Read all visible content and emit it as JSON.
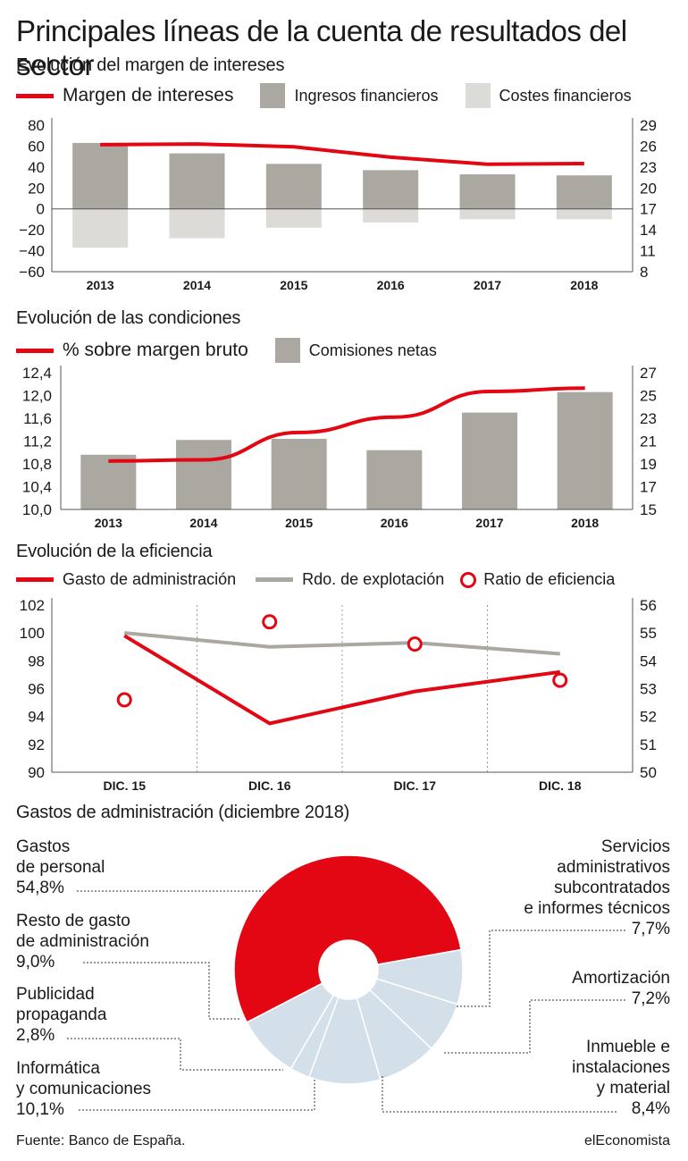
{
  "title": "Principales líneas de la cuenta de resultados del sector",
  "colors": {
    "red": "#e30613",
    "dark_gray": "#aba7a1",
    "light_gray": "#dcdbd7",
    "light_blue": "#d3e0ea"
  },
  "chart1": {
    "subtitle": "Evolución del margen de intereses",
    "legend": {
      "line": "Margen de intereses",
      "bar1": "Ingresos financieros",
      "bar2": "Costes financieros"
    }
  },
  "chart2": {
    "subtitle": "Evolución de las condiciones",
    "legend": {
      "line": "% sobre margen bruto",
      "bar": "Comisiones netas"
    }
  },
  "chart3": {
    "subtitle": "Evolución de la eficiencia",
    "legend": {
      "line_red": "Gasto de administración",
      "line_gray": "Rdo. de explotación",
      "dots": "Ratio de eficiencia"
    }
  },
  "chart4": {
    "subtitle": "Gastos de administración (diciembre 2018)",
    "labels": {
      "personal_1": "Gastos",
      "personal_2": "de personal",
      "personal_v": "54,8%",
      "resto_1": "Resto de gasto",
      "resto_2": "de administración",
      "resto_v": "9,0%",
      "publi_1": "Publicidad",
      "publi_2": "propaganda",
      "publi_v": "2,8%",
      "info_1": "Informática",
      "info_2": "y comunicaciones",
      "info_v": "10,1%",
      "serv_1": "Servicios",
      "serv_2": "administrativos",
      "serv_3": "subcontratados",
      "serv_4": "e informes técnicos",
      "serv_v": "7,7%",
      "amort_1": "Amortización",
      "amort_v": "7,2%",
      "inm_1": "Inmueble e",
      "inm_2": "instalaciones",
      "inm_3": "y material",
      "inm_v": "8,4%"
    }
  },
  "footer": {
    "source": "Fuente: Banco de España.",
    "brand": "elEconomista"
  },
  "chart_data": [
    {
      "type": "bar",
      "title": "Evolución del margen de intereses",
      "categories": [
        "2013",
        "2014",
        "2015",
        "2016",
        "2017",
        "2018"
      ],
      "series": [
        {
          "name": "Ingresos financieros",
          "type": "bar",
          "axis": "left",
          "values": [
            63,
            53,
            43,
            37,
            33,
            32
          ]
        },
        {
          "name": "Costes financieros",
          "type": "bar",
          "axis": "left",
          "values": [
            -37,
            -28,
            -18,
            -13,
            -10,
            -10
          ]
        },
        {
          "name": "Margen de intereses",
          "type": "line",
          "axis": "right",
          "values": [
            26.2,
            26.3,
            25.9,
            24.4,
            23.4,
            23.5
          ]
        }
      ],
      "ylim_left": [
        -60,
        80
      ],
      "yticks_left": [
        "80",
        "60",
        "40",
        "20",
        "0",
        "−20",
        "−40",
        "−60"
      ],
      "ylim_right": [
        8,
        29
      ],
      "yticks_right": [
        "29",
        "26",
        "23",
        "20",
        "17",
        "14",
        "11",
        "8"
      ]
    },
    {
      "type": "bar",
      "title": "Evolución de las condiciones",
      "categories": [
        "2013",
        "2014",
        "2015",
        "2016",
        "2017",
        "2018"
      ],
      "series": [
        {
          "name": "Comisiones netas",
          "type": "bar",
          "axis": "right",
          "values": [
            19.8,
            21.1,
            21.2,
            20.2,
            23.5,
            25.3
          ]
        },
        {
          "name": "% sobre margen bruto",
          "type": "line",
          "axis": "left",
          "values": [
            10.85,
            10.87,
            11.35,
            11.62,
            12.07,
            12.13
          ]
        }
      ],
      "ylim_left": [
        10.0,
        12.4
      ],
      "yticks_left": [
        "12,4",
        "12,0",
        "11,6",
        "11,2",
        "10,8",
        "10,4",
        "10,0"
      ],
      "ylim_right": [
        15,
        27
      ],
      "yticks_right": [
        "27",
        "25",
        "23",
        "21",
        "19",
        "17",
        "15"
      ]
    },
    {
      "type": "line",
      "title": "Evolución de la eficiencia",
      "categories": [
        "DIC. 15",
        "DIC. 16",
        "DIC. 17",
        "DIC. 18"
      ],
      "series": [
        {
          "name": "Gasto de administración",
          "type": "line",
          "axis": "left",
          "values": [
            99.8,
            93.5,
            95.8,
            97.2
          ]
        },
        {
          "name": "Rdo. de explotación",
          "type": "line",
          "axis": "left",
          "values": [
            100.0,
            99.0,
            99.3,
            98.5
          ]
        },
        {
          "name": "Ratio de eficiencia",
          "type": "scatter",
          "axis": "right",
          "values": [
            52.6,
            55.4,
            54.6,
            53.3
          ]
        }
      ],
      "ylim_left": [
        90,
        102
      ],
      "yticks_left": [
        "102",
        "100",
        "98",
        "96",
        "94",
        "92",
        "90"
      ],
      "ylim_right": [
        50,
        56
      ],
      "yticks_right": [
        "56",
        "55",
        "54",
        "53",
        "52",
        "51",
        "50"
      ]
    },
    {
      "type": "pie",
      "title": "Gastos de administración (diciembre 2018)",
      "labels": [
        "Gastos de personal",
        "Servicios administrativos subcontratados e informes técnicos",
        "Amortización",
        "Inmueble e instalaciones y material",
        "Informática y comunicaciones",
        "Publicidad propaganda",
        "Resto de gasto de administración"
      ],
      "values": [
        54.8,
        7.7,
        7.2,
        8.4,
        10.1,
        2.8,
        9.0
      ]
    }
  ]
}
